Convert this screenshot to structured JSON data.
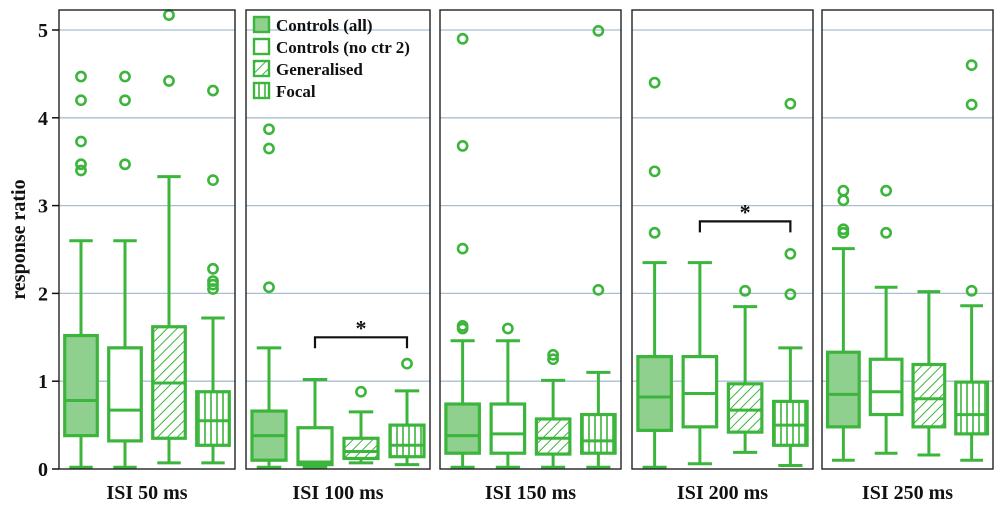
{
  "chart_data": {
    "type": "boxplot",
    "ylabel": "response ratio",
    "ylim": [
      0,
      5.25
    ],
    "yticks": [
      0,
      1,
      2,
      3,
      4,
      5
    ],
    "grid": true,
    "legend_position": "top-left of second panel",
    "colors": {
      "series": "#3cb53c",
      "fill": "#8fd08f",
      "grid": "#a9bfd0",
      "significance": "#111111"
    },
    "groups": [
      {
        "name": "Controls (all)",
        "pattern": "solid"
      },
      {
        "name": "Controls (no ctr 2)",
        "pattern": "empty"
      },
      {
        "name": "Generalised",
        "pattern": "diagonal"
      },
      {
        "name": "Focal",
        "pattern": "vertical"
      }
    ],
    "panels": [
      {
        "label": "ISI 50 ms",
        "boxes": [
          {
            "whisker_low": 0.02,
            "q1": 0.38,
            "median": 0.78,
            "q3": 1.52,
            "whisker_high": 2.6,
            "outliers": [
              3.4,
              3.47,
              3.73,
              4.2,
              4.47
            ]
          },
          {
            "whisker_low": 0.02,
            "q1": 0.32,
            "median": 0.67,
            "q3": 1.38,
            "whisker_high": 2.6,
            "outliers": [
              3.47,
              4.2,
              4.47
            ]
          },
          {
            "whisker_low": 0.07,
            "q1": 0.35,
            "median": 0.98,
            "q3": 1.62,
            "whisker_high": 3.33,
            "outliers": [
              4.42,
              5.17
            ]
          },
          {
            "whisker_low": 0.07,
            "q1": 0.27,
            "median": 0.55,
            "q3": 0.88,
            "whisker_high": 1.72,
            "outliers": [
              2.05,
              2.1,
              2.14,
              2.28,
              3.29,
              4.31
            ]
          }
        ],
        "significance": null
      },
      {
        "label": "ISI 100 ms",
        "boxes": [
          {
            "whisker_low": 0.02,
            "q1": 0.1,
            "median": 0.38,
            "q3": 0.66,
            "whisker_high": 1.38,
            "outliers": [
              2.07,
              3.65,
              3.87
            ]
          },
          {
            "whisker_low": 0.02,
            "q1": 0.05,
            "median": 0.08,
            "q3": 0.47,
            "whisker_high": 1.02,
            "outliers": []
          },
          {
            "whisker_low": 0.07,
            "q1": 0.12,
            "median": 0.2,
            "q3": 0.35,
            "whisker_high": 0.65,
            "outliers": [
              0.88
            ]
          },
          {
            "whisker_low": 0.05,
            "q1": 0.14,
            "median": 0.27,
            "q3": 0.5,
            "whisker_high": 0.89,
            "outliers": [
              1.2
            ]
          }
        ],
        "significance": {
          "from": 1,
          "to": 3,
          "y": 1.5,
          "label": "*"
        }
      },
      {
        "label": "ISI 150 ms",
        "boxes": [
          {
            "whisker_low": 0.02,
            "q1": 0.18,
            "median": 0.38,
            "q3": 0.74,
            "whisker_high": 1.46,
            "outliers": [
              1.6,
              1.63,
              2.51,
              3.68,
              4.9
            ]
          },
          {
            "whisker_low": 0.02,
            "q1": 0.18,
            "median": 0.4,
            "q3": 0.74,
            "whisker_high": 1.46,
            "outliers": [
              1.6
            ]
          },
          {
            "whisker_low": 0.02,
            "q1": 0.17,
            "median": 0.35,
            "q3": 0.57,
            "whisker_high": 1.01,
            "outliers": [
              1.25,
              1.3
            ]
          },
          {
            "whisker_low": 0.02,
            "q1": 0.18,
            "median": 0.32,
            "q3": 0.62,
            "whisker_high": 1.1,
            "outliers": [
              2.04,
              4.99
            ]
          }
        ],
        "significance": null
      },
      {
        "label": "ISI 200 ms",
        "boxes": [
          {
            "whisker_low": 0.02,
            "q1": 0.44,
            "median": 0.82,
            "q3": 1.28,
            "whisker_high": 2.35,
            "outliers": [
              2.69,
              3.39,
              4.4
            ]
          },
          {
            "whisker_low": 0.06,
            "q1": 0.48,
            "median": 0.86,
            "q3": 1.28,
            "whisker_high": 2.35,
            "outliers": []
          },
          {
            "whisker_low": 0.19,
            "q1": 0.42,
            "median": 0.67,
            "q3": 0.97,
            "whisker_high": 1.85,
            "outliers": [
              2.03
            ]
          },
          {
            "whisker_low": 0.04,
            "q1": 0.27,
            "median": 0.5,
            "q3": 0.77,
            "whisker_high": 1.38,
            "outliers": [
              1.99,
              2.45,
              4.16
            ]
          }
        ],
        "significance": {
          "from": 1,
          "to": 3,
          "y": 2.82,
          "label": "*"
        }
      },
      {
        "label": "ISI 250 ms",
        "boxes": [
          {
            "whisker_low": 0.1,
            "q1": 0.48,
            "median": 0.85,
            "q3": 1.33,
            "whisker_high": 2.51,
            "outliers": [
              2.69,
              2.73,
              3.06,
              3.17
            ]
          },
          {
            "whisker_low": 0.18,
            "q1": 0.62,
            "median": 0.88,
            "q3": 1.25,
            "whisker_high": 2.07,
            "outliers": [
              2.69,
              3.17
            ]
          },
          {
            "whisker_low": 0.16,
            "q1": 0.48,
            "median": 0.8,
            "q3": 1.19,
            "whisker_high": 2.02,
            "outliers": []
          },
          {
            "whisker_low": 0.1,
            "q1": 0.4,
            "median": 0.62,
            "q3": 0.99,
            "whisker_high": 1.86,
            "outliers": [
              2.03,
              4.15,
              4.6
            ]
          }
        ],
        "significance": null
      }
    ]
  }
}
